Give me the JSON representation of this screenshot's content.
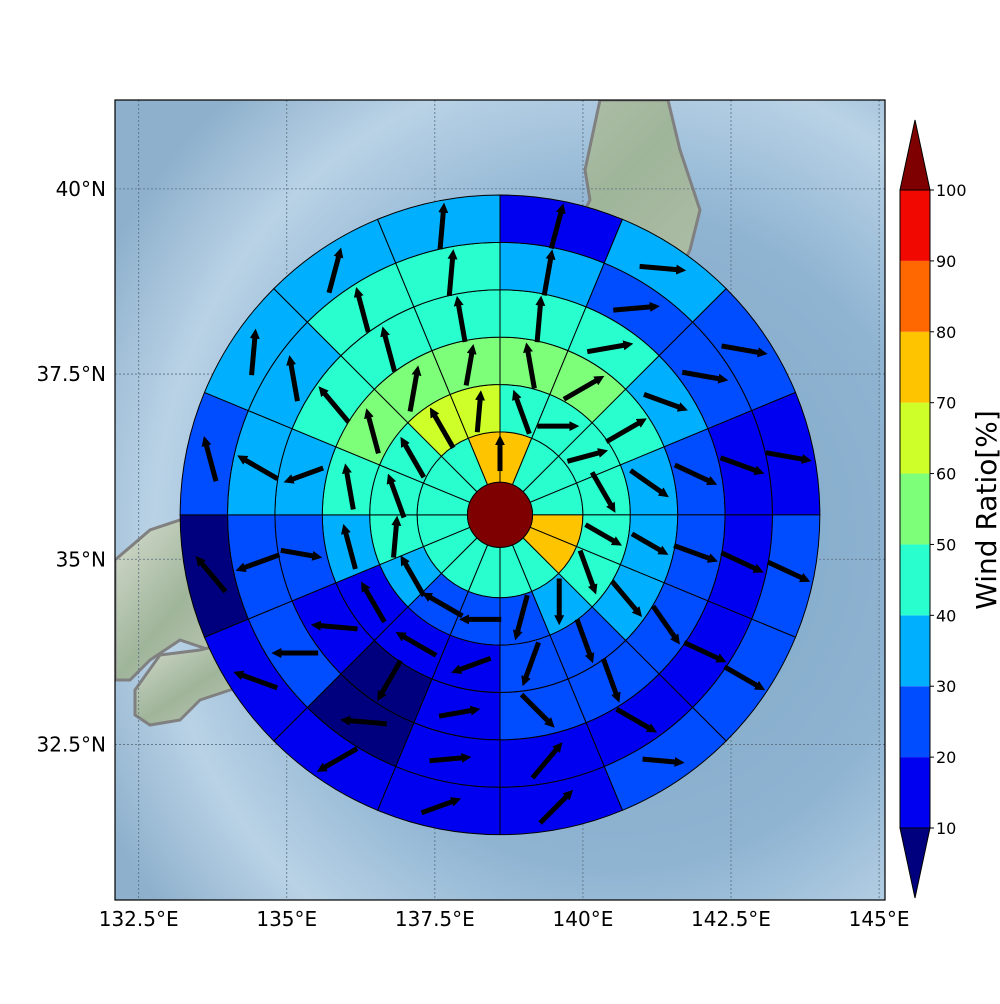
{
  "map": {
    "lat_ticks": [
      {
        "value": 40.0,
        "label": "40°N"
      },
      {
        "value": 37.5,
        "label": "37.5°N"
      },
      {
        "value": 35.0,
        "label": "35°N"
      },
      {
        "value": 32.5,
        "label": "32.5°N"
      }
    ],
    "lon_ticks": [
      {
        "value": 132.5,
        "label": "132.5°E"
      },
      {
        "value": 135.0,
        "label": "135°E"
      },
      {
        "value": 137.5,
        "label": "137.5°E"
      },
      {
        "value": 140.0,
        "label": "140°E"
      },
      {
        "value": 142.5,
        "label": "142.5°E"
      },
      {
        "value": 145.0,
        "label": "145°E"
      }
    ],
    "lon_range": [
      132.1,
      145.1
    ],
    "lat_range": [
      30.4,
      41.2
    ],
    "center": {
      "lon": 138.6,
      "lat": 35.6
    },
    "ring_radii_deg": [
      0.55,
      1.4,
      2.2,
      3.0,
      3.8,
      4.6,
      5.4
    ],
    "sectors": 16,
    "gridlines": true,
    "background": "shaded relief map of central Japan with ocean",
    "coastline_color": "#808080"
  },
  "colorbar": {
    "label": "Wind Ratio[%]",
    "ticks": [
      "10",
      "20",
      "30",
      "40",
      "50",
      "60",
      "70",
      "80",
      "90",
      "100"
    ],
    "levels": [
      0,
      10,
      20,
      30,
      40,
      50,
      60,
      70,
      80,
      90,
      100
    ],
    "colors": [
      "#00007f",
      "#0000f1",
      "#004cff",
      "#00b0ff",
      "#29ffce",
      "#7dff7a",
      "#ceff29",
      "#ffc400",
      "#ff6800",
      "#f10800",
      "#7f0000"
    ]
  },
  "chart_data": {
    "type": "polar_sector_map",
    "center_value": 100,
    "sector_order": "clockwise from north, 16 sectors of 22.5 degrees",
    "rings": [
      {
        "ring": 1,
        "values": [
          70,
          45,
          45,
          45,
          70,
          70,
          45,
          45,
          45,
          45,
          45,
          45,
          45,
          45,
          45,
          70
        ]
      },
      {
        "ring": 2,
        "values": [
          45,
          45,
          45,
          45,
          45,
          45,
          35,
          25,
          25,
          25,
          35,
          45,
          45,
          45,
          65,
          65
        ]
      },
      {
        "ring": 3,
        "values": [
          55,
          55,
          45,
          35,
          35,
          35,
          25,
          25,
          15,
          15,
          15,
          35,
          45,
          55,
          55,
          55
        ]
      },
      {
        "ring": 4,
        "values": [
          45,
          45,
          35,
          25,
          25,
          25,
          25,
          25,
          15,
          5,
          15,
          25,
          35,
          45,
          45,
          45
        ]
      },
      {
        "ring": 5,
        "values": [
          35,
          25,
          25,
          15,
          15,
          15,
          15,
          15,
          15,
          5,
          25,
          25,
          35,
          35,
          45,
          45
        ]
      },
      {
        "ring": 6,
        "values": [
          15,
          35,
          25,
          15,
          25,
          25,
          25,
          15,
          15,
          15,
          15,
          5,
          25,
          35,
          35,
          35
        ]
      }
    ],
    "wind_arrows": [
      [
        [
          0,
          18
        ]
      ],
      [
        [
          340,
          25
        ],
        [
          90,
          22
        ],
        [
          75,
          22
        ],
        [
          150,
          25
        ],
        [
          120,
          22
        ],
        [
          160,
          25
        ],
        [
          180,
          25
        ],
        [
          195,
          25
        ],
        [
          270,
          22
        ],
        [
          300,
          25
        ],
        [
          330,
          25
        ],
        [
          5,
          22
        ],
        [
          340,
          25
        ],
        [
          330,
          25
        ],
        [
          330,
          25
        ],
        [
          5,
          22
        ]
      ],
      [
        [
          350,
          25
        ],
        [
          60,
          25
        ],
        [
          60,
          25
        ],
        [
          125,
          25
        ],
        [
          120,
          22
        ],
        [
          140,
          25
        ],
        [
          160,
          25
        ],
        [
          200,
          25
        ],
        [
          250,
          22
        ],
        [
          300,
          25
        ],
        [
          330,
          25
        ],
        [
          345,
          25
        ],
        [
          350,
          25
        ],
        [
          345,
          25
        ],
        [
          10,
          25
        ],
        [
          10,
          22
        ]
      ],
      [
        [
          5,
          25
        ],
        [
          80,
          25
        ],
        [
          110,
          25
        ],
        [
          115,
          25
        ],
        [
          110,
          25
        ],
        [
          145,
          25
        ],
        [
          160,
          25
        ],
        [
          135,
          25
        ],
        [
          80,
          22
        ],
        [
          210,
          25
        ],
        [
          275,
          25
        ],
        [
          100,
          22
        ],
        [
          250,
          22
        ],
        [
          320,
          25
        ],
        [
          345,
          25
        ],
        [
          350,
          25
        ]
      ],
      [
        [
          10,
          25
        ],
        [
          85,
          25
        ],
        [
          100,
          25
        ],
        [
          110,
          25
        ],
        [
          115,
          25
        ],
        [
          115,
          25
        ],
        [
          120,
          25
        ],
        [
          40,
          25
        ],
        [
          85,
          22
        ],
        [
          275,
          25
        ],
        [
          270,
          25
        ],
        [
          250,
          25
        ],
        [
          300,
          25
        ],
        [
          350,
          25
        ],
        [
          345,
          25
        ],
        [
          5,
          25
        ]
      ],
      [
        [
          15,
          25
        ],
        [
          95,
          25
        ],
        [
          100,
          25
        ],
        [
          100,
          25
        ],
        [
          115,
          25
        ],
        [
          120,
          25
        ],
        [
          95,
          22
        ],
        [
          45,
          25
        ],
        [
          70,
          22
        ],
        [
          240,
          25
        ],
        [
          290,
          25
        ],
        [
          320,
          25
        ],
        [
          345,
          25
        ],
        [
          5,
          25
        ],
        [
          15,
          25
        ],
        [
          5,
          25
        ]
      ]
    ]
  }
}
